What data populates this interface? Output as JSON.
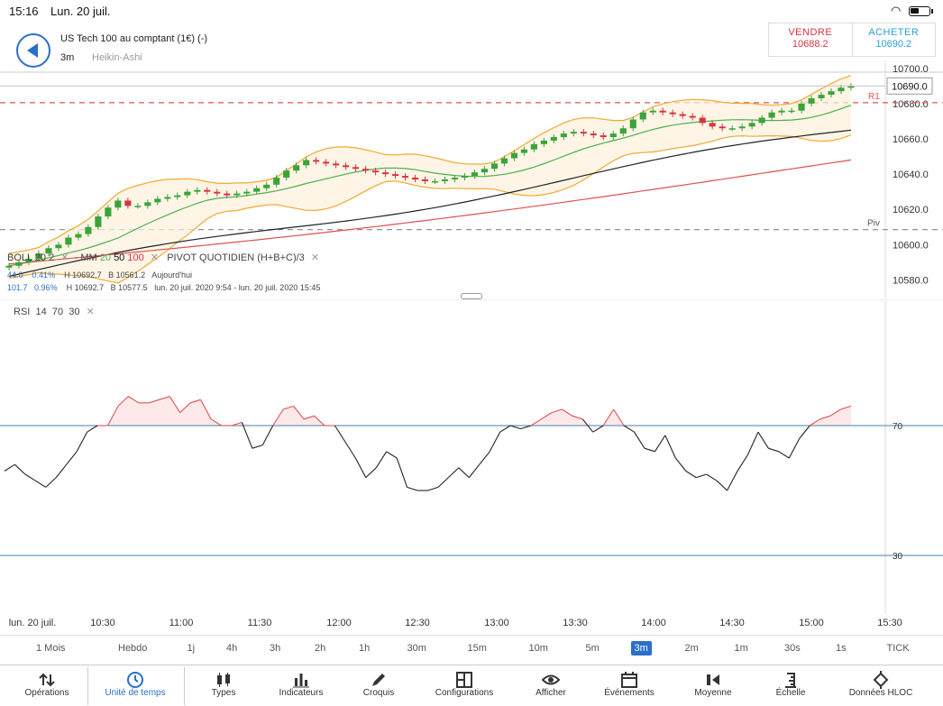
{
  "status": {
    "time": "15:16",
    "date": "Lun. 20 juil."
  },
  "instrument": {
    "name": "US Tech 100 au comptant (1€) (-)",
    "timeframe": "3m",
    "chart_type": "Heikin-Ashi"
  },
  "trade": {
    "sell_label": "VENDRE",
    "sell_price": "10688.2",
    "buy_label": "ACHETER",
    "buy_price": "10690.2"
  },
  "price_axis": {
    "ticks": [
      "10700.0",
      "10680.0",
      "10660.0",
      "10640.0",
      "10620.0",
      "10600.0",
      "10580.0"
    ],
    "current": "10690.0",
    "r1": "R1",
    "piv": "Piv"
  },
  "legend": {
    "boll": "BOLL",
    "boll_p1": "20",
    "boll_p2": "2",
    "mm": "MM",
    "mm20": "20",
    "mm50": "50",
    "mm100": "100",
    "pivot": "PIVOT QUOTIDIEN (H+B+C)/3",
    "row1": {
      "change": "44.0",
      "pct": "0.41%",
      "high": "H 10692.7",
      "low": "B 10561.2",
      "period": "Aujourd'hui"
    },
    "row2": {
      "change": "101.7",
      "pct": "0.96%",
      "high": "H 10692.7",
      "low": "B 10577.5",
      "period": "lun. 20 juil. 2020 9:54 - lun. 20 juil. 2020 15:45"
    }
  },
  "rsi": {
    "label": "RSI",
    "p1": "14",
    "p2": "70",
    "p3": "30",
    "level_high": "70",
    "level_low": "30"
  },
  "x_axis": {
    "labels": [
      "lun. 20 juil.",
      "10:30",
      "11:00",
      "11:30",
      "12:00",
      "12:30",
      "13:00",
      "13:30",
      "14:00",
      "14:30",
      "15:00",
      "15:30"
    ]
  },
  "timeframes": [
    "1 Mois",
    "Hebdo",
    "1j",
    "4h",
    "3h",
    "2h",
    "1h",
    "30m",
    "15m",
    "10m",
    "5m",
    "3m",
    "2m",
    "1m",
    "30s",
    "1s",
    "TICK"
  ],
  "active_timeframe": "3m",
  "toolbar": [
    {
      "label": "Opérations",
      "icon": "operations-icon"
    },
    {
      "label": "Unité de temps",
      "icon": "clock-icon"
    },
    {
      "label": "Types",
      "icon": "candles-icon"
    },
    {
      "label": "Indicateurs",
      "icon": "bars-icon"
    },
    {
      "label": "Croquis",
      "icon": "pencil-icon"
    },
    {
      "label": "Configurations",
      "icon": "layout-icon"
    },
    {
      "label": "Afficher",
      "icon": "eye-icon"
    },
    {
      "label": "Événements",
      "icon": "calendar-icon"
    },
    {
      "label": "Moyenne",
      "icon": "moyenne-icon"
    },
    {
      "label": "Échelle",
      "icon": "scale-icon"
    },
    {
      "label": "Données HLOC",
      "icon": "crosshair-icon"
    }
  ],
  "active_tool": "Unité de temps",
  "colors": {
    "accent": "#2a6fc9",
    "up": "#3aa43a",
    "down": "#d9333f",
    "boll": "#f0a830",
    "mm20": "#4caf50",
    "mm50": "#222222",
    "mm100": "#e05050"
  },
  "chart_data": [
    {
      "type": "candlestick",
      "title": "",
      "ylim": [
        10570,
        10705
      ],
      "x_ticks": [
        "10:30",
        "11:00",
        "11:30",
        "12:00",
        "12:30",
        "13:00",
        "13:30",
        "14:00",
        "14:30",
        "15:00",
        "15:30"
      ],
      "closes": [
        10588,
        10590,
        10592,
        10595,
        10598,
        10600,
        10604,
        10606,
        10610,
        10616,
        10621,
        10625,
        10622,
        10622,
        10624,
        10626,
        10627,
        10628,
        10630,
        10631,
        10630,
        10629,
        10628,
        10629,
        10630,
        10632,
        10634,
        10638,
        10642,
        10645,
        10648,
        10647,
        10646,
        10645,
        10644,
        10643,
        10642,
        10641,
        10640,
        10639,
        10638,
        10637,
        10636,
        10636,
        10637,
        10638,
        10639,
        10641,
        10643,
        10646,
        10649,
        10652,
        10654,
        10657,
        10659,
        10661,
        10663,
        10664,
        10663,
        10662,
        10661,
        10663,
        10666,
        10671,
        10675,
        10676,
        10675,
        10674,
        10673,
        10672,
        10669,
        10667,
        10666,
        10666,
        10667,
        10669,
        10672,
        10675,
        10676,
        10676,
        10680,
        10683,
        10685,
        10687,
        10689,
        10690
      ]
    },
    {
      "type": "line",
      "series_label": "RSI",
      "ylim": [
        0,
        100
      ],
      "levels": [
        70,
        30
      ],
      "values": [
        56,
        58,
        55,
        53,
        51,
        54,
        58,
        62,
        68,
        70,
        70,
        76,
        79,
        77,
        77,
        78,
        79,
        74,
        77,
        78,
        72,
        70,
        70,
        71,
        63,
        64,
        70,
        75,
        76,
        72,
        73,
        70,
        70,
        65,
        60,
        54,
        57,
        62,
        60,
        51,
        50,
        50,
        51,
        54,
        57,
        54,
        58,
        62,
        68,
        70,
        69,
        70,
        72,
        74,
        75,
        73,
        72,
        68,
        70,
        75,
        70,
        68,
        63,
        62,
        67,
        60,
        56,
        54,
        55,
        53,
        50,
        56,
        61,
        68,
        63,
        62,
        60,
        66,
        70,
        72,
        73,
        75,
        76
      ]
    }
  ]
}
